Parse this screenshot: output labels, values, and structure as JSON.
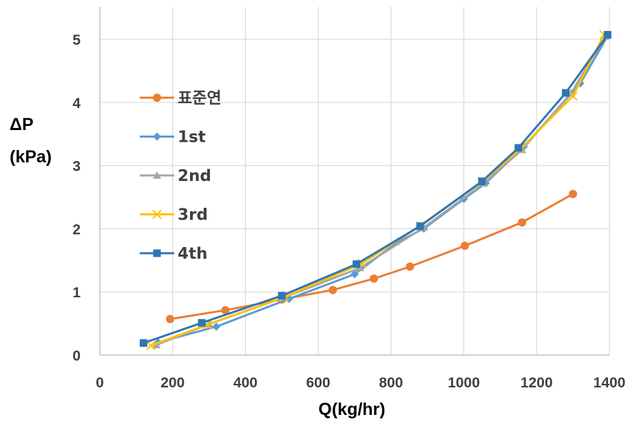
{
  "chart_data": {
    "type": "line",
    "xlabel": "Q(kg/hr)",
    "ylabel": [
      "ΔP",
      "(kPa)"
    ],
    "xlim": [
      0,
      1400
    ],
    "ylim": [
      0,
      5
    ],
    "xticks": [
      0,
      200,
      400,
      600,
      800,
      1000,
      1200,
      1400
    ],
    "yticks": [
      0,
      1,
      2,
      3,
      4,
      5
    ],
    "grid": true,
    "legend_position": "left, upper-middle inside plot",
    "series": [
      {
        "name": "표준연",
        "color": "#ED7D31",
        "marker": "circle",
        "points": [
          [
            193,
            0.57
          ],
          [
            345,
            0.71
          ],
          [
            500,
            0.88
          ],
          [
            640,
            1.03
          ],
          [
            753,
            1.21
          ],
          [
            852,
            1.4
          ],
          [
            1003,
            1.73
          ],
          [
            1160,
            2.1
          ],
          [
            1300,
            2.55
          ]
        ]
      },
      {
        "name": "1st",
        "color": "#5B9BD5",
        "marker": "diamond",
        "points": [
          [
            160,
            0.2
          ],
          [
            320,
            0.45
          ],
          [
            520,
            0.89
          ],
          [
            700,
            1.28
          ],
          [
            820,
            1.8
          ],
          [
            890,
            2.0
          ],
          [
            1000,
            2.47
          ],
          [
            1060,
            2.72
          ],
          [
            1165,
            3.3
          ],
          [
            1320,
            4.3
          ],
          [
            1395,
            5.05
          ]
        ]
      },
      {
        "name": "2nd",
        "color": "#A5A5A5",
        "marker": "triangle",
        "points": [
          [
            155,
            0.16
          ],
          [
            300,
            0.49
          ],
          [
            510,
            0.92
          ],
          [
            715,
            1.38
          ],
          [
            890,
            2.02
          ],
          [
            1055,
            2.72
          ],
          [
            1160,
            3.25
          ],
          [
            1295,
            4.15
          ],
          [
            1390,
            5.05
          ]
        ]
      },
      {
        "name": "3rd",
        "color": "#FFC000",
        "marker": "x",
        "points": [
          [
            140,
            0.15
          ],
          [
            295,
            0.48
          ],
          [
            505,
            0.91
          ],
          [
            720,
            1.45
          ],
          [
            880,
            2.05
          ],
          [
            1050,
            2.74
          ],
          [
            1155,
            3.26
          ],
          [
            1300,
            4.1
          ],
          [
            1385,
            5.07
          ]
        ]
      },
      {
        "name": "4th",
        "color": "#2E75B6",
        "marker": "square",
        "points": [
          [
            120,
            0.19
          ],
          [
            280,
            0.51
          ],
          [
            500,
            0.94
          ],
          [
            705,
            1.44
          ],
          [
            880,
            2.04
          ],
          [
            1050,
            2.75
          ],
          [
            1150,
            3.28
          ],
          [
            1280,
            4.15
          ],
          [
            1395,
            5.07
          ]
        ]
      }
    ]
  }
}
